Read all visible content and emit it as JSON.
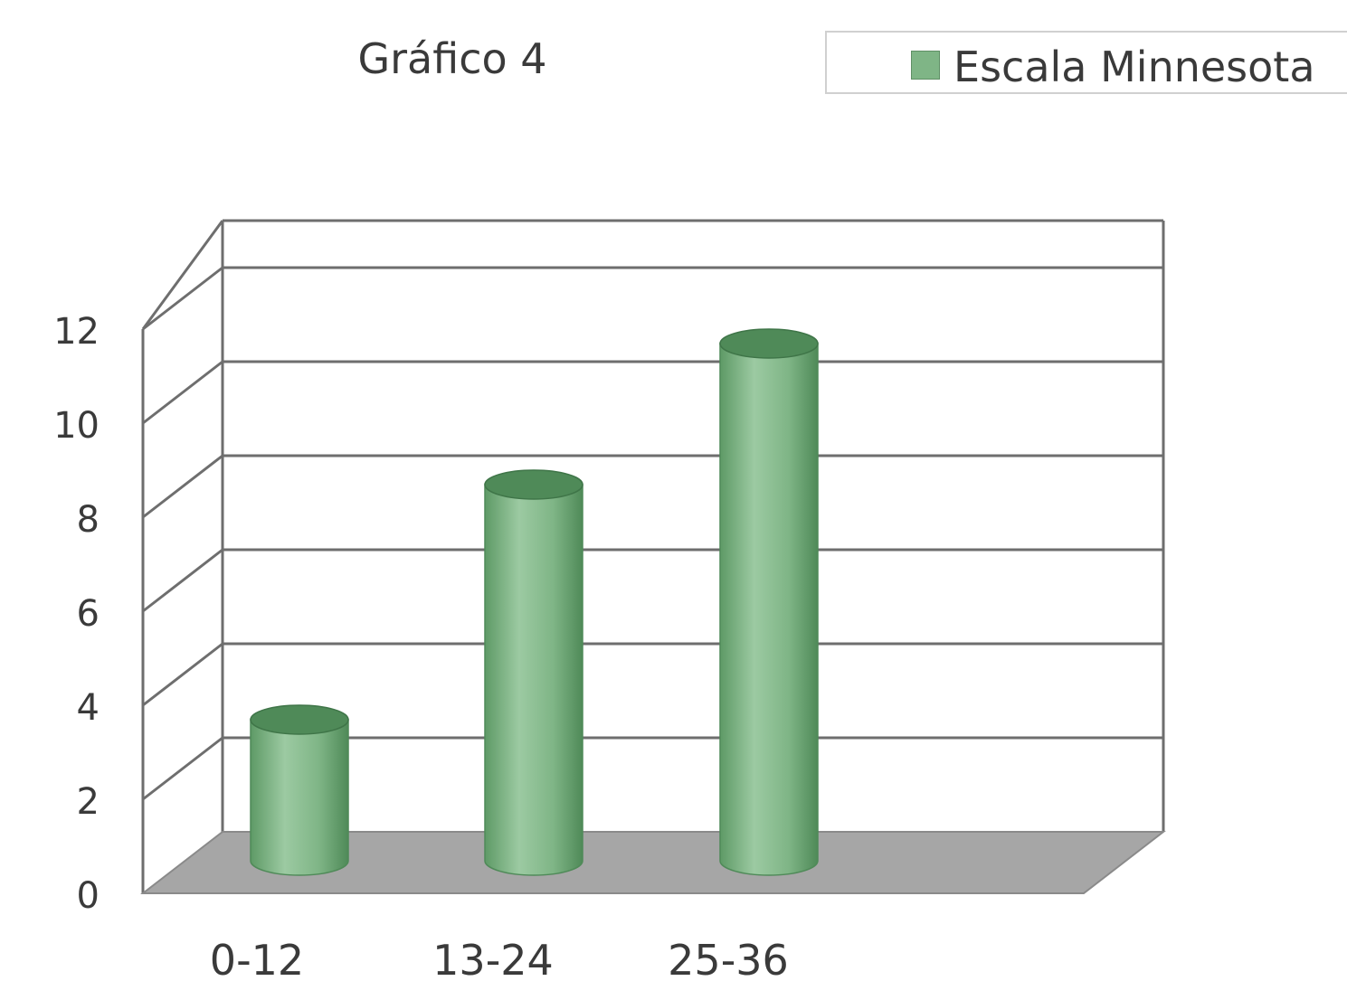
{
  "chart_data": {
    "type": "bar",
    "title": "Gráfico 4",
    "categories": [
      "0-12",
      "13-24",
      "25-36"
    ],
    "series": [
      {
        "name": "Escala Minnesota",
        "values": [
          3,
          8,
          11
        ]
      }
    ],
    "ylim": [
      0,
      12
    ],
    "yticks": [
      0,
      2,
      4,
      6,
      8,
      10,
      12
    ],
    "grid": true,
    "legend_position": "top-right",
    "bar_style": "3d-cylinder",
    "colors": {
      "bar": "#7fb586",
      "bar_dark": "#4f8a58",
      "floor": "#a6a6a6",
      "grid": "#6e6e6e"
    }
  }
}
